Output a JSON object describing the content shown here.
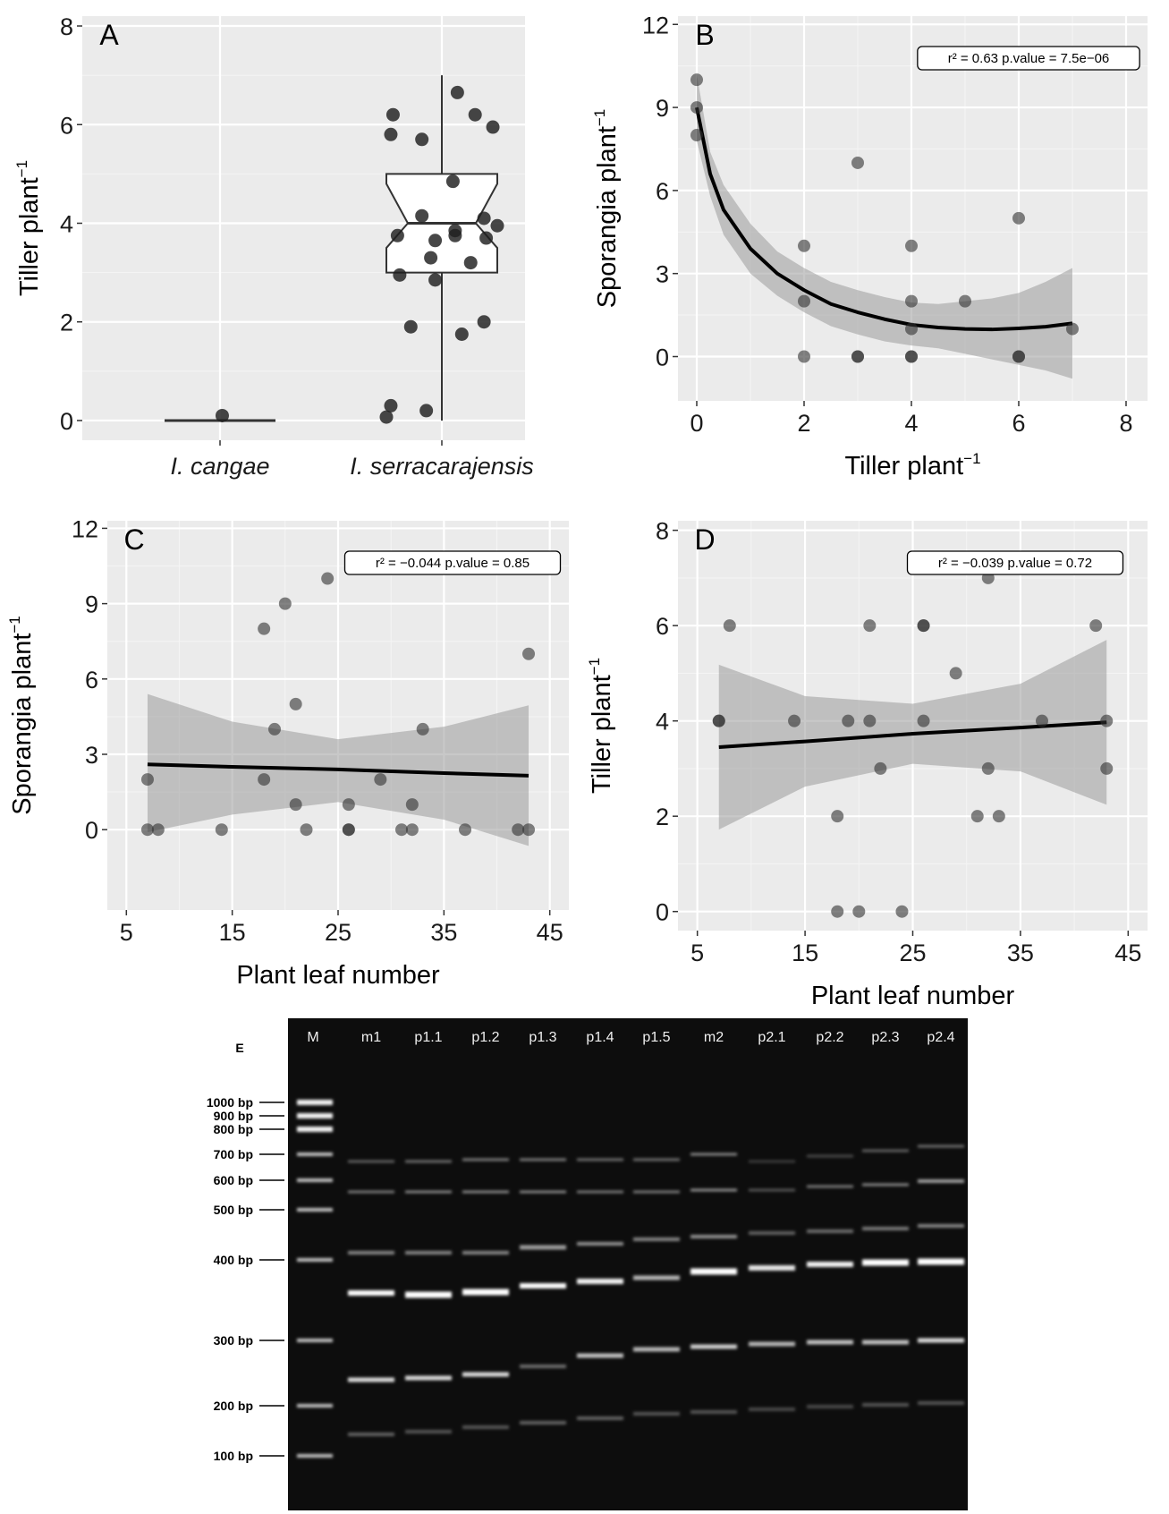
{
  "chart_data": [
    {
      "panel": "A",
      "type": "box",
      "ylabel": "Tiller plant",
      "ylabel_exp": "−1",
      "categories": [
        "I. cangae",
        "I. serracarajensis"
      ],
      "yticks": [
        0,
        2,
        4,
        6,
        8
      ],
      "ylim": [
        -0.4,
        8.2
      ],
      "boxes": [
        {
          "category": "I. cangae",
          "min": 0,
          "q1": 0,
          "median": 0,
          "q3": 0,
          "max": 0,
          "notch_low": 0,
          "notch_high": 0
        },
        {
          "category": "I. serracarajensis",
          "min": 0,
          "q1": 3,
          "median": 4,
          "q3": 5,
          "max": 7,
          "notch_low": 3.5,
          "notch_high": 4.8
        }
      ],
      "points": [
        {
          "category": "I. cangae",
          "dx": 0.01,
          "y": 0.1
        },
        {
          "category": "I. serracarajensis",
          "dx": 0.07,
          "y": 6.65
        },
        {
          "category": "I. serracarajensis",
          "dx": -0.22,
          "y": 6.2
        },
        {
          "category": "I. serracarajensis",
          "dx": 0.15,
          "y": 6.2
        },
        {
          "category": "I. serracarajensis",
          "dx": 0.23,
          "y": 5.95
        },
        {
          "category": "I. serracarajensis",
          "dx": -0.23,
          "y": 5.8
        },
        {
          "category": "I. serracarajensis",
          "dx": -0.09,
          "y": 5.7
        },
        {
          "category": "I. serracarajensis",
          "dx": 0.05,
          "y": 4.85
        },
        {
          "category": "I. serracarajensis",
          "dx": -0.09,
          "y": 4.15
        },
        {
          "category": "I. serracarajensis",
          "dx": 0.19,
          "y": 4.1
        },
        {
          "category": "I. serracarajensis",
          "dx": 0.25,
          "y": 3.95
        },
        {
          "category": "I. serracarajensis",
          "dx": 0.06,
          "y": 3.85
        },
        {
          "category": "I. serracarajensis",
          "dx": 0.06,
          "y": 3.75
        },
        {
          "category": "I. serracarajensis",
          "dx": -0.2,
          "y": 3.75
        },
        {
          "category": "I. serracarajensis",
          "dx": 0.2,
          "y": 3.7
        },
        {
          "category": "I. serracarajensis",
          "dx": -0.03,
          "y": 3.65
        },
        {
          "category": "I. serracarajensis",
          "dx": -0.05,
          "y": 3.3
        },
        {
          "category": "I. serracarajensis",
          "dx": 0.13,
          "y": 3.2
        },
        {
          "category": "I. serracarajensis",
          "dx": -0.19,
          "y": 2.95
        },
        {
          "category": "I. serracarajensis",
          "dx": -0.03,
          "y": 2.85
        },
        {
          "category": "I. serracarajensis",
          "dx": 0.19,
          "y": 2.0
        },
        {
          "category": "I. serracarajensis",
          "dx": -0.14,
          "y": 1.9
        },
        {
          "category": "I. serracarajensis",
          "dx": 0.09,
          "y": 1.75
        },
        {
          "category": "I. serracarajensis",
          "dx": -0.23,
          "y": 0.3
        },
        {
          "category": "I. serracarajensis",
          "dx": -0.07,
          "y": 0.2
        },
        {
          "category": "I. serracarajensis",
          "dx": -0.25,
          "y": 0.07
        }
      ],
      "grid": true
    },
    {
      "panel": "B",
      "type": "scatter",
      "xlabel": "Tiller plant",
      "xlabel_exp": "−1",
      "ylabel": "Sporangia plant",
      "ylabel_exp": "−1",
      "xticks": [
        0,
        2,
        4,
        6,
        8
      ],
      "yticks": [
        0,
        3,
        6,
        9,
        12
      ],
      "xlim": [
        -0.35,
        8.4
      ],
      "ylim": [
        -1.6,
        12.3
      ],
      "stat_label": "r² =  0.63    p.value = 7.5e−06",
      "points": [
        [
          0,
          10
        ],
        [
          0,
          9
        ],
        [
          0,
          8
        ],
        [
          2,
          4
        ],
        [
          2,
          2
        ],
        [
          2,
          0
        ],
        [
          3,
          7
        ],
        [
          3,
          0
        ],
        [
          3,
          0
        ],
        [
          4,
          4
        ],
        [
          4,
          2
        ],
        [
          4,
          1
        ],
        [
          4,
          0
        ],
        [
          4,
          0
        ],
        [
          5,
          2
        ],
        [
          6,
          5
        ],
        [
          6,
          0
        ],
        [
          6,
          0
        ],
        [
          7,
          1
        ]
      ],
      "fit": {
        "kind": "loess",
        "x": [
          0,
          0.25,
          0.5,
          1,
          1.5,
          2,
          2.5,
          3,
          3.5,
          4,
          4.5,
          5,
          5.5,
          6,
          6.5,
          7
        ],
        "y": [
          9.0,
          6.6,
          5.3,
          3.9,
          3.0,
          2.4,
          1.9,
          1.6,
          1.35,
          1.15,
          1.05,
          1.0,
          0.98,
          1.02,
          1.08,
          1.2
        ],
        "lower": [
          7.8,
          5.8,
          4.4,
          3.0,
          2.2,
          1.6,
          1.1,
          0.8,
          0.55,
          0.4,
          0.3,
          0.1,
          -0.1,
          -0.3,
          -0.5,
          -0.8
        ],
        "upper": [
          10.2,
          7.4,
          6.2,
          4.8,
          3.8,
          3.2,
          2.7,
          2.4,
          2.15,
          1.95,
          1.9,
          2.0,
          2.1,
          2.3,
          2.7,
          3.2
        ]
      },
      "grid": true
    },
    {
      "panel": "C",
      "type": "scatter",
      "xlabel": "Plant leaf number",
      "ylabel": "Sporangia plant",
      "ylabel_exp": "−1",
      "xticks": [
        5,
        15,
        25,
        35,
        45
      ],
      "yticks": [
        0,
        3,
        6,
        9,
        12
      ],
      "xlim": [
        3.2,
        46.8
      ],
      "ylim": [
        -3.2,
        12.3
      ],
      "stat_label": "r² =  −0.044    p.value = 0.85",
      "points": [
        [
          7,
          2
        ],
        [
          7,
          0
        ],
        [
          8,
          0
        ],
        [
          14,
          0
        ],
        [
          18,
          8
        ],
        [
          18,
          2
        ],
        [
          19,
          4
        ],
        [
          20,
          9
        ],
        [
          21,
          5
        ],
        [
          21,
          1
        ],
        [
          22,
          0
        ],
        [
          24,
          10
        ],
        [
          26,
          1
        ],
        [
          26,
          0
        ],
        [
          26,
          0
        ],
        [
          29,
          2
        ],
        [
          31,
          0
        ],
        [
          32,
          1
        ],
        [
          32,
          0
        ],
        [
          33,
          4
        ],
        [
          37,
          0
        ],
        [
          42,
          0
        ],
        [
          43,
          7
        ],
        [
          43,
          0
        ]
      ],
      "fit": {
        "kind": "lm",
        "x": [
          7,
          15,
          25,
          35,
          43
        ],
        "y": [
          2.6,
          2.5,
          2.4,
          2.25,
          2.15
        ],
        "lower": [
          -0.1,
          0.6,
          1.1,
          0.4,
          -0.65
        ],
        "upper": [
          5.4,
          4.3,
          3.6,
          4.1,
          4.95
        ]
      },
      "grid": true
    },
    {
      "panel": "D",
      "type": "scatter",
      "xlabel": "Plant leaf number",
      "ylabel": "Tiller plant",
      "ylabel_exp": "−1",
      "xticks": [
        5,
        15,
        25,
        35,
        45
      ],
      "yticks": [
        0,
        2,
        4,
        6,
        8
      ],
      "xlim": [
        3.2,
        46.8
      ],
      "ylim": [
        -0.4,
        8.2
      ],
      "stat_label": "r² =  −0.039    p.value = 0.72",
      "points": [
        [
          7,
          4
        ],
        [
          7,
          4
        ],
        [
          8,
          6
        ],
        [
          14,
          4
        ],
        [
          18,
          2
        ],
        [
          18,
          0
        ],
        [
          19,
          4
        ],
        [
          20,
          0
        ],
        [
          21,
          6
        ],
        [
          21,
          4
        ],
        [
          22,
          3
        ],
        [
          24,
          0
        ],
        [
          26,
          6
        ],
        [
          26,
          6
        ],
        [
          26,
          4
        ],
        [
          29,
          5
        ],
        [
          31,
          2
        ],
        [
          32,
          7
        ],
        [
          32,
          3
        ],
        [
          33,
          2
        ],
        [
          37,
          4
        ],
        [
          42,
          6
        ],
        [
          43,
          4
        ],
        [
          43,
          3
        ]
      ],
      "fit": {
        "kind": "lm",
        "x": [
          7,
          15,
          25,
          35,
          43
        ],
        "y": [
          3.45,
          3.57,
          3.73,
          3.86,
          3.97
        ],
        "lower": [
          1.72,
          2.62,
          3.1,
          2.94,
          2.24
        ],
        "upper": [
          5.18,
          4.52,
          4.36,
          4.78,
          5.7
        ]
      },
      "grid": true
    },
    {
      "panel": "E",
      "type": "gel",
      "lanes": [
        "M",
        "m1",
        "p1.1",
        "p1.2",
        "p1.3",
        "p1.4",
        "p1.5",
        "m2",
        "p2.1",
        "p2.2",
        "p2.3",
        "p2.4"
      ],
      "ladder_labels": [
        "1000 bp",
        "900 bp",
        "800 bp",
        "700 bp",
        "600 bp",
        "500 bp",
        "400 bp",
        "300 bp",
        "200 bp",
        "100 bp"
      ],
      "ladder_sizes": [
        1000,
        900,
        800,
        700,
        600,
        500,
        400,
        300,
        200,
        100
      ]
    }
  ],
  "panel_labels": [
    "A",
    "B",
    "C",
    "D",
    "E"
  ]
}
